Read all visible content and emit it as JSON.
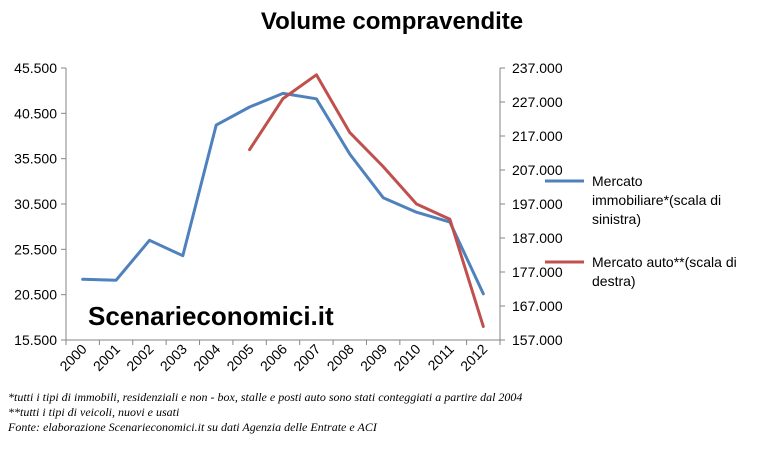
{
  "chart_data": {
    "type": "line",
    "title": "Volume compravendite",
    "categories": [
      "2000",
      "2001",
      "2002",
      "2003",
      "2004",
      "2005",
      "2006",
      "2007",
      "2008",
      "2009",
      "2010",
      "2011",
      "2012"
    ],
    "left_axis": {
      "ylim": [
        15500,
        45500
      ],
      "ticks": [
        "15.500",
        "20.500",
        "25.500",
        "30.500",
        "35.500",
        "40.500",
        "45.500"
      ],
      "tick_values": [
        15500,
        20500,
        25500,
        30500,
        35500,
        40500,
        45500
      ]
    },
    "right_axis": {
      "ylim": [
        157000,
        237000
      ],
      "ticks": [
        "157.000",
        "167.000",
        "177.000",
        "187.000",
        "197.000",
        "207.000",
        "217.000",
        "227.000",
        "237.000"
      ],
      "tick_values": [
        157000,
        167000,
        177000,
        187000,
        197000,
        207000,
        217000,
        227000,
        237000
      ]
    },
    "series": [
      {
        "name": "Mercato immobiliare*(scala di sinistra)",
        "legend_lines": [
          "Mercato",
          "immobiliare*(scala di",
          "sinistra)"
        ],
        "axis": "left",
        "color": "#4F81BD",
        "values": [
          22200,
          22100,
          26500,
          24800,
          39200,
          41200,
          42700,
          42100,
          36000,
          31200,
          29600,
          28500,
          20600
        ]
      },
      {
        "name": "Mercato auto**(scala di destra)",
        "legend_lines": [
          "Mercato auto**(scala di",
          "destra)"
        ],
        "axis": "right",
        "color": "#C0504D",
        "values": [
          null,
          null,
          null,
          null,
          null,
          213000,
          228000,
          235000,
          218000,
          208000,
          197000,
          192500,
          161000
        ]
      }
    ],
    "grid": false,
    "legend_position": "right"
  },
  "watermark": "Scenarieconomici.it",
  "footnotes": [
    "*tutti i tipi di immobili, residenziali e non - box, stalle e posti auto sono stati conteggiati a partire dal 2004",
    "**tutti i tipi di veicoli, nuovi e usati",
    "Fonte: elaborazione Scenarieconomici.it su dati Agenzia delle Entrate e ACI"
  ]
}
